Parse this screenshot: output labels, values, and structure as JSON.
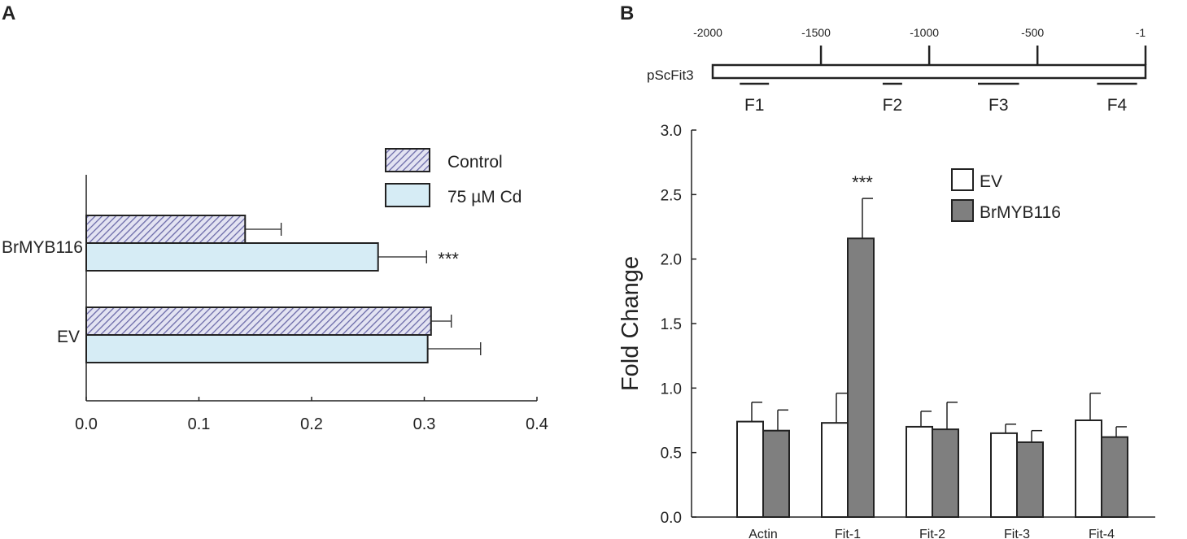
{
  "panel_a": {
    "letter": "A"
  },
  "panel_b": {
    "letter": "B"
  },
  "promoter": {
    "label": "pScFit3",
    "ticks": [
      {
        "pos": -2000,
        "label": "-2000"
      },
      {
        "pos": -1500,
        "label": "-1500"
      },
      {
        "pos": -1000,
        "label": "-1000"
      },
      {
        "pos": -500,
        "label": "-500"
      },
      {
        "pos": -1,
        "label": "-1"
      }
    ],
    "fragments": [
      {
        "label": "F1",
        "start": -1875,
        "end": -1740
      },
      {
        "label": "F2",
        "start": -1215,
        "end": -1125
      },
      {
        "label": "F3",
        "start": -775,
        "end": -585
      },
      {
        "label": "F4",
        "start": -225,
        "end": -40
      }
    ]
  },
  "colors": {
    "control_hatch": "#6b6aa8",
    "control_bg": "#e3e3f2",
    "cd_fill": "#d6ecf5",
    "ev_fill": "#ffffff",
    "brmyb_fill": "#7f7f7f",
    "axis": "#222222"
  },
  "chart_data": [
    {
      "type": "bar",
      "orientation": "horizontal",
      "panel": "A",
      "title": "",
      "xlabel": "",
      "ylabel": "",
      "categories": [
        "BrMYB116",
        "EV"
      ],
      "series": [
        {
          "name": "Control",
          "values": [
            0.141,
            0.306
          ],
          "errors": [
            0.032,
            0.018
          ]
        },
        {
          "name": "75 µM Cd",
          "values": [
            0.259,
            0.303
          ],
          "errors": [
            0.043,
            0.047
          ]
        }
      ],
      "annotations": [
        {
          "category": "BrMYB116",
          "series": "75 µM Cd",
          "text": "***"
        }
      ],
      "xlim": [
        0.0,
        0.4
      ],
      "xticks": [
        0.0,
        0.1,
        0.2,
        0.3,
        0.4
      ],
      "xtick_labels": [
        "0.0",
        "0.1",
        "0.2",
        "0.3",
        "0.4"
      ],
      "legend": "top-right",
      "grid": false
    },
    {
      "type": "bar",
      "panel": "B",
      "title": "",
      "xlabel": "",
      "ylabel": "Fold Change",
      "categories": [
        "Actin",
        "Fit-1",
        "Fit-2",
        "Fit-3",
        "Fit-4"
      ],
      "series": [
        {
          "name": "EV",
          "values": [
            0.74,
            0.73,
            0.7,
            0.65,
            0.75
          ],
          "errors": [
            0.15,
            0.23,
            0.12,
            0.07,
            0.21
          ]
        },
        {
          "name": "BrMYB116",
          "values": [
            0.67,
            2.16,
            0.68,
            0.58,
            0.62
          ],
          "errors": [
            0.16,
            0.31,
            0.21,
            0.09,
            0.08
          ]
        }
      ],
      "annotations": [
        {
          "category": "Fit-1",
          "series": "BrMYB116",
          "text": "***"
        }
      ],
      "ylim": [
        0.0,
        3.0
      ],
      "yticks": [
        0.0,
        0.5,
        1.0,
        1.5,
        2.0,
        2.5,
        3.0
      ],
      "ytick_labels": [
        "0.0",
        "0.5",
        "1.0",
        "1.5",
        "2.0",
        "2.5",
        "3.0"
      ],
      "legend": "top-right",
      "grid": false
    }
  ]
}
